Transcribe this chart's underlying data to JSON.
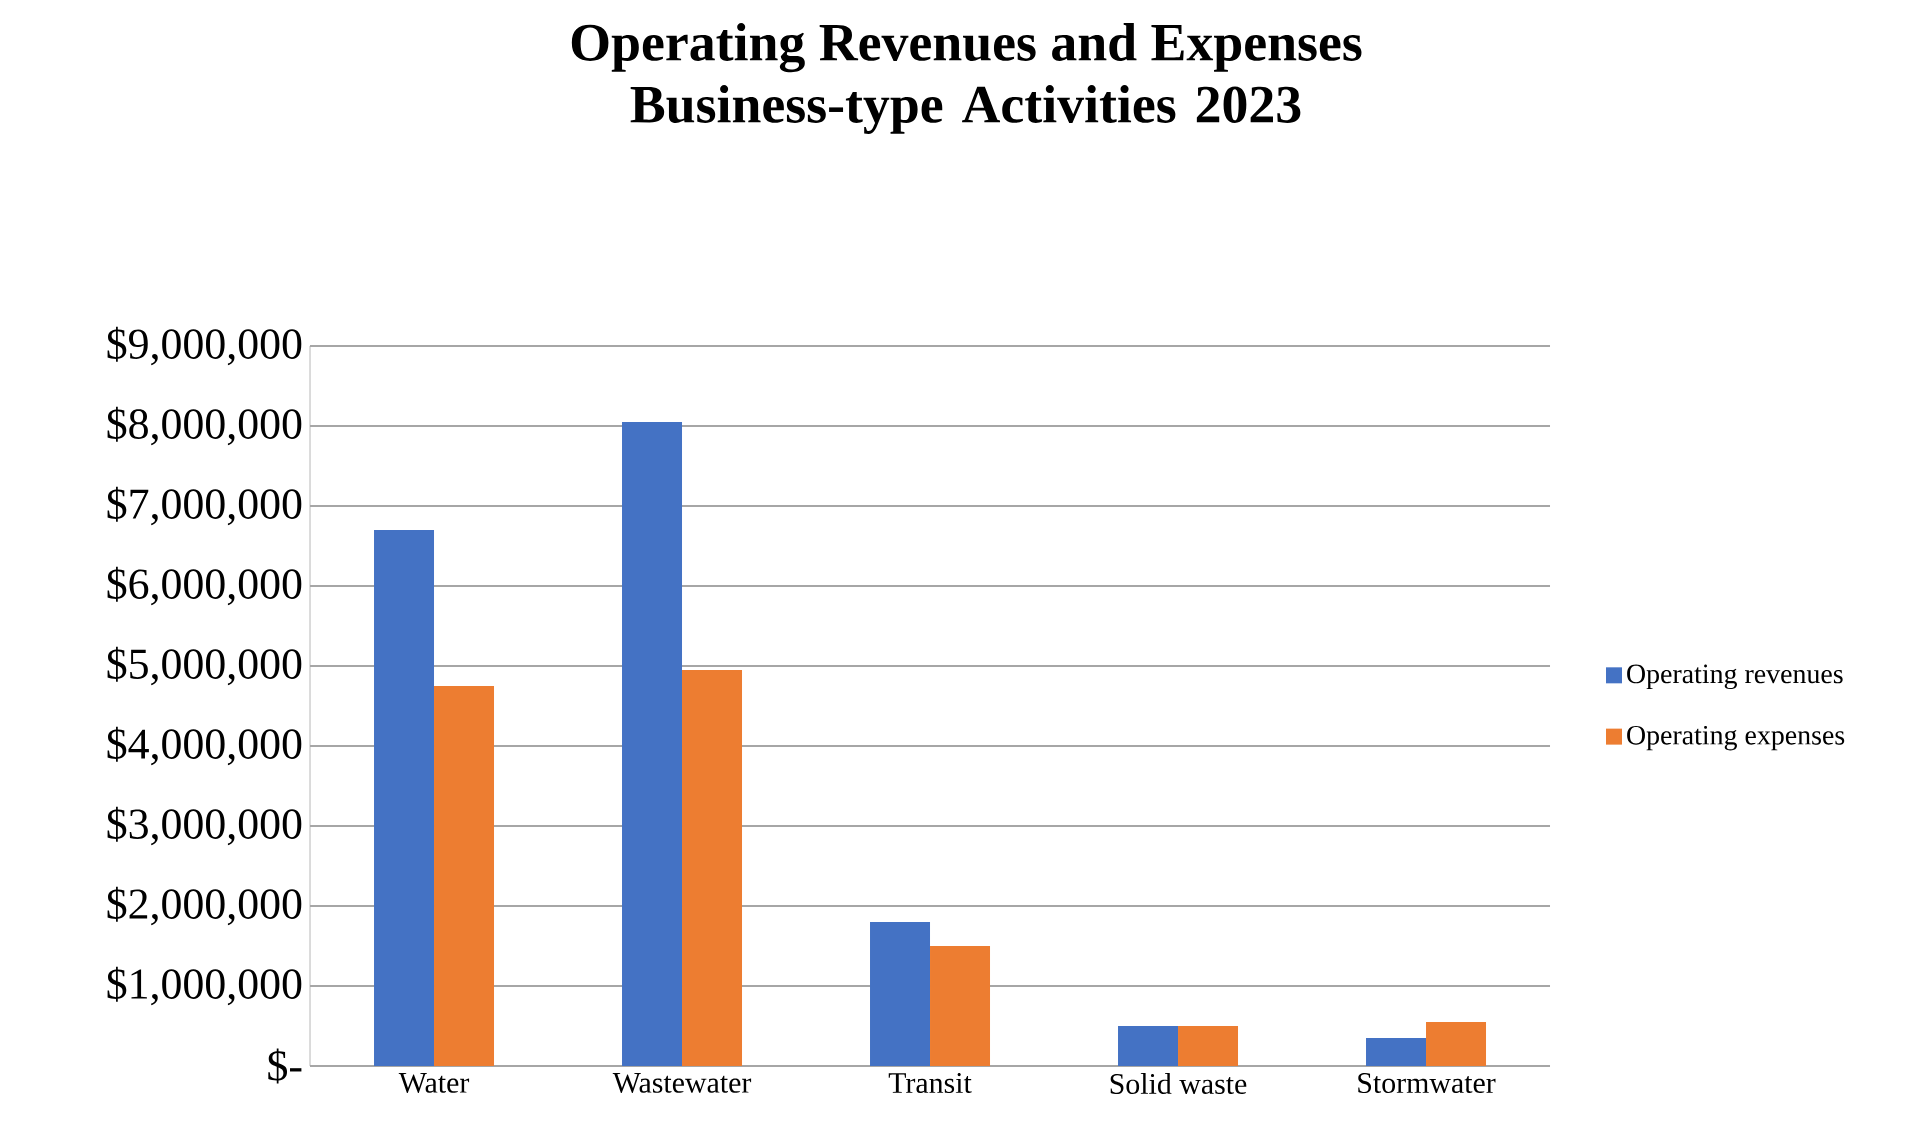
{
  "chart_data": {
    "type": "bar",
    "title": "Operating Revenues and Expenses",
    "subtitle": "Business-type Activities 2023",
    "categories": [
      "Water",
      "Wastewater",
      "Transit",
      "Solid waste",
      "Stormwater"
    ],
    "series": [
      {
        "name": "Operating revenues",
        "color": "#4472c4",
        "values": [
          6700000,
          8050000,
          1800000,
          500000,
          350000
        ]
      },
      {
        "name": "Operating expenses",
        "color": "#ed7d31",
        "values": [
          4750000,
          4950000,
          1500000,
          500000,
          550000
        ]
      }
    ],
    "ylim": [
      0,
      9000000
    ],
    "yticks": [
      {
        "value": 0,
        "label": "$-"
      },
      {
        "value": 1000000,
        "label": "$1,000,000"
      },
      {
        "value": 2000000,
        "label": "$2,000,000"
      },
      {
        "value": 3000000,
        "label": "$3,000,000"
      },
      {
        "value": 4000000,
        "label": "$4,000,000"
      },
      {
        "value": 5000000,
        "label": "$5,000,000"
      },
      {
        "value": 6000000,
        "label": "$6,000,000"
      },
      {
        "value": 7000000,
        "label": "$7,000,000"
      },
      {
        "value": 8000000,
        "label": "$8,000,000"
      },
      {
        "value": 9000000,
        "label": "$9,000,000"
      }
    ],
    "grid": "y",
    "legend": "right"
  }
}
